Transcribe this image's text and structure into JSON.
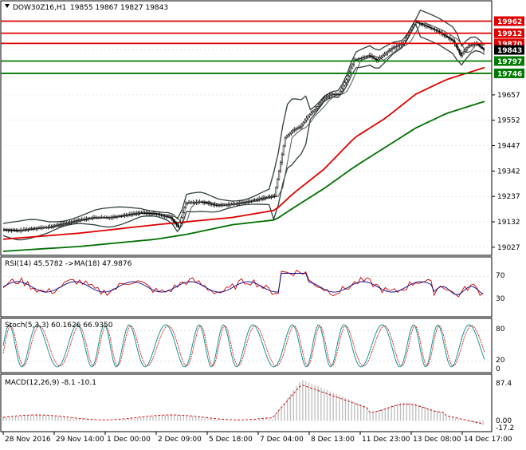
{
  "header": {
    "symbol": "DOW30Z16,H1",
    "ohlc": "19855 19867 19827 19843"
  },
  "colors": {
    "candle": "#000000",
    "ma_short": "#4a5a4a",
    "ma_red": "#e00000",
    "ma_green": "#007000",
    "bollinger": "#2f3f3f",
    "level_red": "#e00000",
    "level_green": "#007a00",
    "current_tag": "#000000",
    "rsi_line": "#cc0000",
    "rsi_ma": "#00008b",
    "stoch_main": "#008b8b",
    "stoch_signal": "#cc0000",
    "macd_hist": "#c0c0c0",
    "macd_signal": "#cc0000",
    "grid": "#c0c0c0"
  },
  "price_axis": {
    "labels": [
      "19962",
      "19912",
      "19870",
      "19843",
      "19797",
      "19746",
      "19657",
      "19552",
      "19447",
      "19342",
      "19237",
      "19132",
      "19027"
    ]
  },
  "levels": [
    {
      "value": "19962",
      "kind": "resistance",
      "color": "#e00000"
    },
    {
      "value": "19912",
      "kind": "resistance",
      "color": "#e00000"
    },
    {
      "value": "19870",
      "kind": "resistance",
      "color": "#e00000"
    },
    {
      "value": "19843",
      "kind": "current",
      "color": "#000000"
    },
    {
      "value": "19797",
      "kind": "support",
      "color": "#007a00"
    },
    {
      "value": "19746",
      "kind": "support",
      "color": "#007a00"
    }
  ],
  "rsi": {
    "title": "RSI(14) 45.5782 ->MA(18) 47.9876",
    "axis": [
      "70",
      "30"
    ]
  },
  "stoch": {
    "title": "Stoch(5,3,3) 60.1626 66.9350",
    "axis": [
      "80",
      "20",
      "0"
    ]
  },
  "macd": {
    "title": "MACD(12,26,9) -8.1 -10.1",
    "axis": [
      "87.4",
      "0.00",
      "-17.2"
    ]
  },
  "time_axis": {
    "labels": [
      "28 Nov 2016",
      "29 Nov 14:00",
      "1 Dec 00:00",
      "2 Dec 09:00",
      "5 Dec 18:00",
      "7 Dec 04:00",
      "8 Dec 13:00",
      "11 Dec 23:00",
      "13 Dec 08:00",
      "14 Dec 17:00"
    ]
  },
  "chart_data": {
    "type": "candlestick",
    "title": "DOW30Z16,H1",
    "ylim": [
      19000,
      19990
    ],
    "levels": [
      19962,
      19912,
      19870,
      19843,
      19797,
      19746
    ],
    "close_path": [
      [
        0,
        19100
      ],
      [
        10,
        19095
      ],
      [
        20,
        19105
      ],
      [
        30,
        19110
      ],
      [
        40,
        19125
      ],
      [
        50,
        19140
      ],
      [
        60,
        19150
      ],
      [
        70,
        19150
      ],
      [
        80,
        19160
      ],
      [
        90,
        19170
      ],
      [
        100,
        19165
      ],
      [
        110,
        19150
      ],
      [
        115,
        19110
      ],
      [
        120,
        19210
      ],
      [
        130,
        19215
      ],
      [
        140,
        19200
      ],
      [
        150,
        19205
      ],
      [
        160,
        19215
      ],
      [
        170,
        19230
      ],
      [
        178,
        19240
      ],
      [
        185,
        19480
      ],
      [
        190,
        19510
      ],
      [
        195,
        19525
      ],
      [
        200,
        19570
      ],
      [
        205,
        19600
      ],
      [
        210,
        19640
      ],
      [
        215,
        19660
      ],
      [
        220,
        19660
      ],
      [
        225,
        19720
      ],
      [
        230,
        19800
      ],
      [
        235,
        19810
      ],
      [
        240,
        19820
      ],
      [
        245,
        19800
      ],
      [
        250,
        19825
      ],
      [
        255,
        19850
      ],
      [
        262,
        19870
      ],
      [
        270,
        19960
      ],
      [
        278,
        19940
      ],
      [
        285,
        19920
      ],
      [
        290,
        19900
      ],
      [
        295,
        19880
      ],
      [
        300,
        19820
      ],
      [
        305,
        19860
      ],
      [
        310,
        19870
      ],
      [
        315,
        19843
      ]
    ],
    "ma_red_path": [
      [
        0,
        19060
      ],
      [
        50,
        19085
      ],
      [
        100,
        19120
      ],
      [
        150,
        19150
      ],
      [
        178,
        19180
      ],
      [
        190,
        19250
      ],
      [
        210,
        19350
      ],
      [
        230,
        19480
      ],
      [
        250,
        19560
      ],
      [
        270,
        19660
      ],
      [
        290,
        19720
      ],
      [
        315,
        19770
      ]
    ],
    "ma_green_path": [
      [
        0,
        19010
      ],
      [
        50,
        19030
      ],
      [
        100,
        19060
      ],
      [
        120,
        19080
      ],
      [
        150,
        19120
      ],
      [
        178,
        19140
      ],
      [
        190,
        19190
      ],
      [
        210,
        19270
      ],
      [
        230,
        19360
      ],
      [
        250,
        19440
      ],
      [
        270,
        19520
      ],
      [
        290,
        19580
      ],
      [
        315,
        19630
      ]
    ],
    "x_count": 315
  }
}
